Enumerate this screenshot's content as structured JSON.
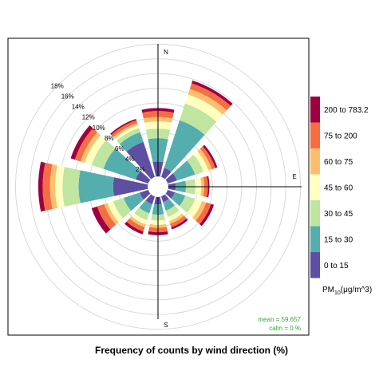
{
  "chart_data": {
    "type": "polar-stacked-bar",
    "title": "Frequency of counts by wind direction (%)",
    "compass": {
      "n": "N",
      "e": "E",
      "s": "S"
    },
    "radial_ticks": [
      2,
      4,
      6,
      8,
      10,
      12,
      14,
      16,
      18
    ],
    "radial_tick_labels": [
      "2%",
      "4%",
      "6%",
      "8%",
      "10%",
      "12%",
      "14%",
      "16%",
      "18%"
    ],
    "rmax": 18,
    "directions": [
      0,
      30,
      60,
      90,
      120,
      150,
      180,
      210,
      240,
      270,
      300,
      330
    ],
    "series": [
      {
        "name": "0 to 15",
        "color": "#5E4FA2",
        "values": [
          2.0,
          1.3,
          1.3,
          1.0,
          1.0,
          0.8,
          1.0,
          1.1,
          1.2,
          4.7,
          1.8,
          5.0
        ]
      },
      {
        "name": "15 to 30",
        "color": "#54AEAD",
        "values": [
          3.2,
          6.8,
          2.6,
          1.4,
          1.5,
          1.2,
          1.4,
          1.3,
          2.3,
          4.7,
          4.6,
          1.4
        ]
      },
      {
        "name": "30 to 45",
        "color": "#BFE5A0",
        "values": [
          1.3,
          2.4,
          1.2,
          1.3,
          1.4,
          0.9,
          0.8,
          1.0,
          1.5,
          2.2,
          1.7,
          0.6
        ]
      },
      {
        "name": "45 to 60",
        "color": "#FFFFBF",
        "values": [
          1.0,
          1.3,
          0.7,
          0.8,
          1.0,
          0.6,
          0.6,
          0.6,
          0.8,
          1.0,
          1.0,
          0.4
        ]
      },
      {
        "name": "60 to 75",
        "color": "#FDBF6F",
        "values": [
          0.6,
          0.8,
          0.5,
          0.4,
          0.6,
          0.4,
          0.4,
          0.4,
          0.5,
          0.7,
          0.6,
          0.3
        ]
      },
      {
        "name": "75 to 200",
        "color": "#F46D43",
        "values": [
          0.8,
          0.8,
          0.5,
          0.5,
          0.7,
          0.5,
          0.6,
          0.6,
          1.0,
          1.0,
          0.8,
          0.4
        ]
      },
      {
        "name": "200 to 783.2",
        "color": "#9E0142",
        "values": [
          0.4,
          0.4,
          0.3,
          0.2,
          0.4,
          0.3,
          0.4,
          0.4,
          0.8,
          0.6,
          0.6,
          0.2
        ]
      }
    ],
    "legend": {
      "labels_top_to_bottom": [
        "200 to 783.2",
        "75 to 200",
        "60 to 75",
        "45 to 60",
        "30 to 45",
        "15 to 30",
        "0 to 15"
      ],
      "title_main": "PM",
      "title_sub": "10",
      "title_tail": "(μg/m^3)",
      "placement": "right"
    },
    "stats": {
      "mean": "mean =  59.657",
      "calm": "calm =  0 %"
    }
  }
}
